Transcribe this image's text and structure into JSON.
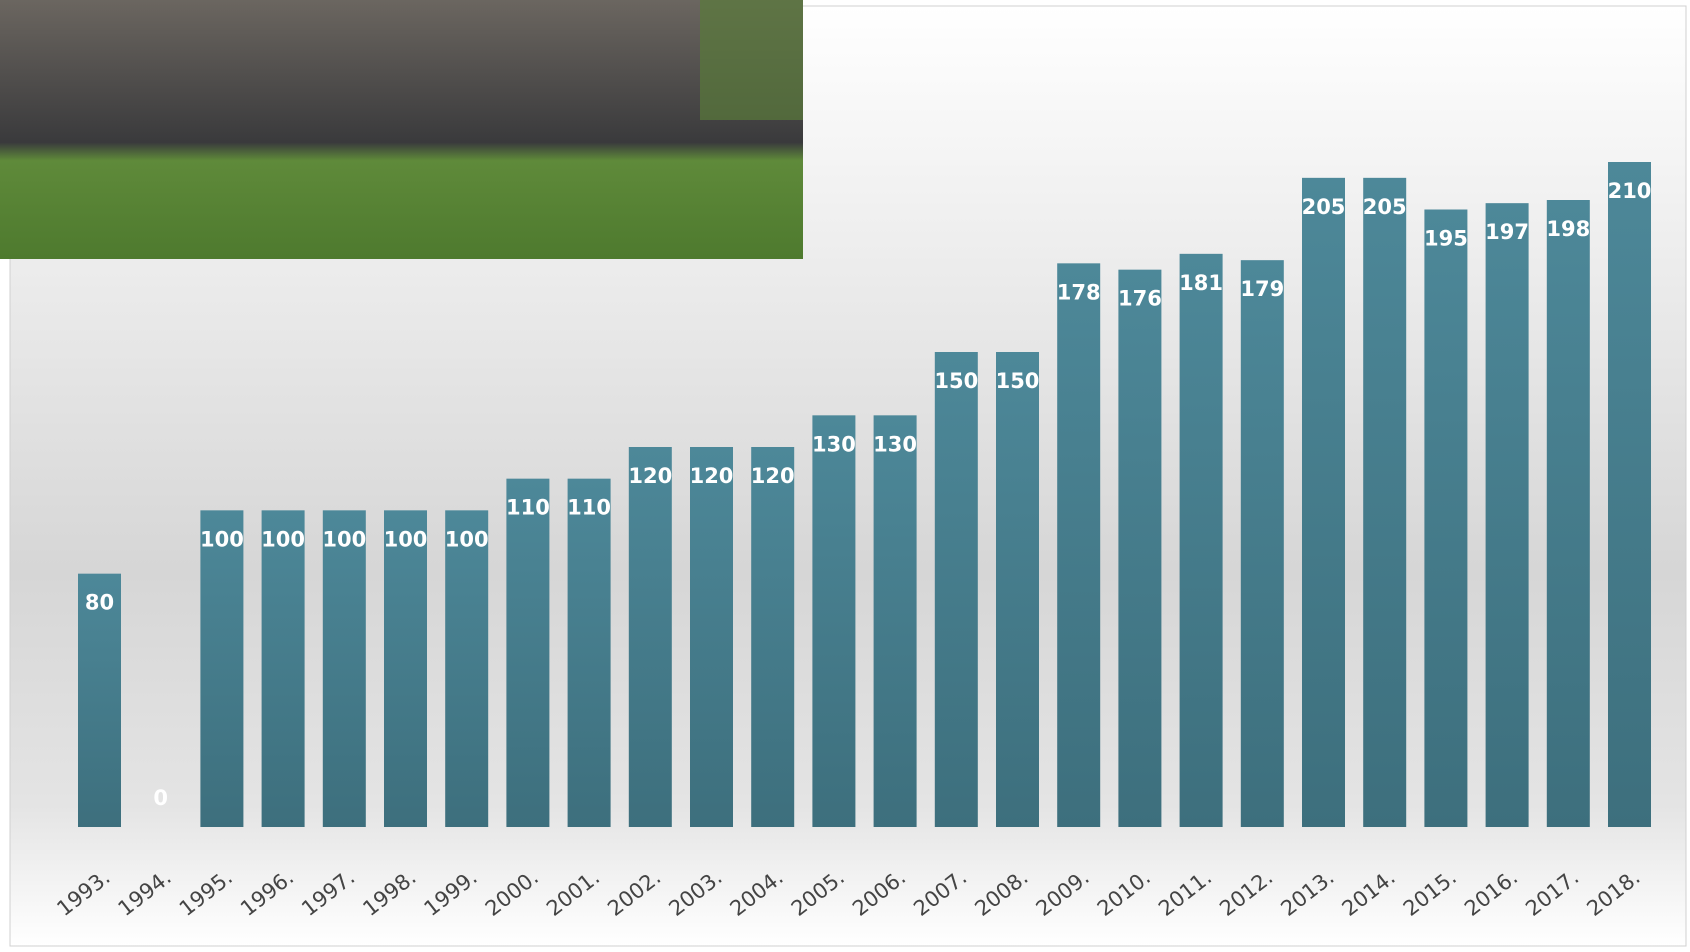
{
  "chart_data": {
    "type": "bar",
    "categories": [
      "1993.",
      "1994.",
      "1995.",
      "1996.",
      "1997.",
      "1998.",
      "1999.",
      "2000.",
      "2001.",
      "2002.",
      "2003.",
      "2004.",
      "2005.",
      "2006.",
      "2007.",
      "2008.",
      "2009.",
      "2010.",
      "2011.",
      "2012.",
      "2013.",
      "2014.",
      "2015.",
      "2016.",
      "2017.",
      "2018."
    ],
    "values": [
      80,
      0,
      100,
      100,
      100,
      100,
      100,
      110,
      110,
      120,
      120,
      120,
      130,
      130,
      150,
      150,
      178,
      176,
      181,
      179,
      205,
      205,
      195,
      197,
      198,
      210
    ],
    "color": "#47808f"
  }
}
